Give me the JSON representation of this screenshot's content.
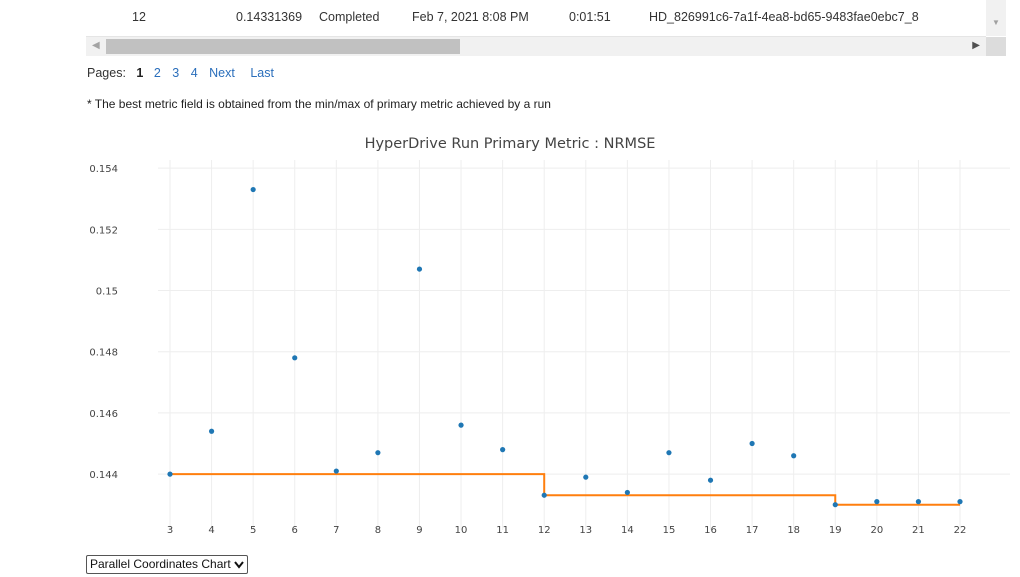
{
  "table": {
    "row": {
      "iteration": "12",
      "best_metric": "0.14331369",
      "status": "Completed",
      "start_time": "Feb 7, 2021 8:08 PM",
      "duration": "0:01:51",
      "run_id": "HD_826991c6-7a1f-4ea8-bd65-9483fae0ebc7_8"
    }
  },
  "pagination": {
    "label": "Pages:",
    "current": "1",
    "pages": [
      "2",
      "3",
      "4"
    ],
    "next": "Next",
    "last": "Last"
  },
  "footnote": "* The best metric field is obtained from the min/max of primary metric achieved by a run",
  "chart_selector": {
    "selected": "Parallel Coordinates Chart"
  },
  "colors": {
    "points": "#1f77b4",
    "best_line": "#ff7f0e",
    "link": "#2a6ebb"
  },
  "icons": {
    "dropdown": "chevron-down-icon",
    "scroll_left": "arrow-left-icon",
    "scroll_right": "arrow-right-icon",
    "scroll_down": "arrow-down-icon"
  },
  "chart_data": {
    "type": "scatter",
    "title": "HyperDrive Run Primary Metric : NRMSE",
    "xlabel": "",
    "ylabel": "",
    "xlim": [
      3,
      22
    ],
    "ylim": [
      0.1425,
      0.1542
    ],
    "x_ticks": [
      3,
      4,
      5,
      6,
      7,
      8,
      9,
      10,
      11,
      12,
      13,
      14,
      15,
      16,
      17,
      18,
      19,
      20,
      21,
      22
    ],
    "y_ticks": [
      0.144,
      0.146,
      0.148,
      0.15,
      0.152,
      0.154
    ],
    "y_tick_labels": [
      "0.144",
      "0.146",
      "0.148",
      "0.15",
      "0.152",
      "0.154"
    ],
    "grid": true,
    "series": [
      {
        "type": "scatter",
        "x": [
          3,
          4,
          5,
          6,
          7,
          8,
          9,
          10,
          11,
          12,
          13,
          14,
          15,
          16,
          17,
          18,
          19,
          20,
          21,
          22
        ],
        "y": [
          0.144,
          0.1454,
          0.1533,
          0.1478,
          0.1441,
          0.1447,
          0.1507,
          0.1456,
          0.1448,
          0.14331,
          0.1439,
          0.1434,
          0.1447,
          0.1438,
          0.145,
          0.1446,
          0.143,
          0.1431,
          0.1431,
          0.1431
        ]
      },
      {
        "type": "step-line",
        "x": [
          3,
          4,
          5,
          6,
          7,
          8,
          9,
          10,
          11,
          12,
          13,
          14,
          15,
          16,
          17,
          18,
          19,
          20,
          21,
          22
        ],
        "y": [
          0.144,
          0.144,
          0.144,
          0.144,
          0.144,
          0.144,
          0.144,
          0.144,
          0.144,
          0.14331,
          0.14331,
          0.14331,
          0.14331,
          0.14331,
          0.14331,
          0.14331,
          0.143,
          0.143,
          0.143,
          0.143
        ]
      }
    ]
  }
}
